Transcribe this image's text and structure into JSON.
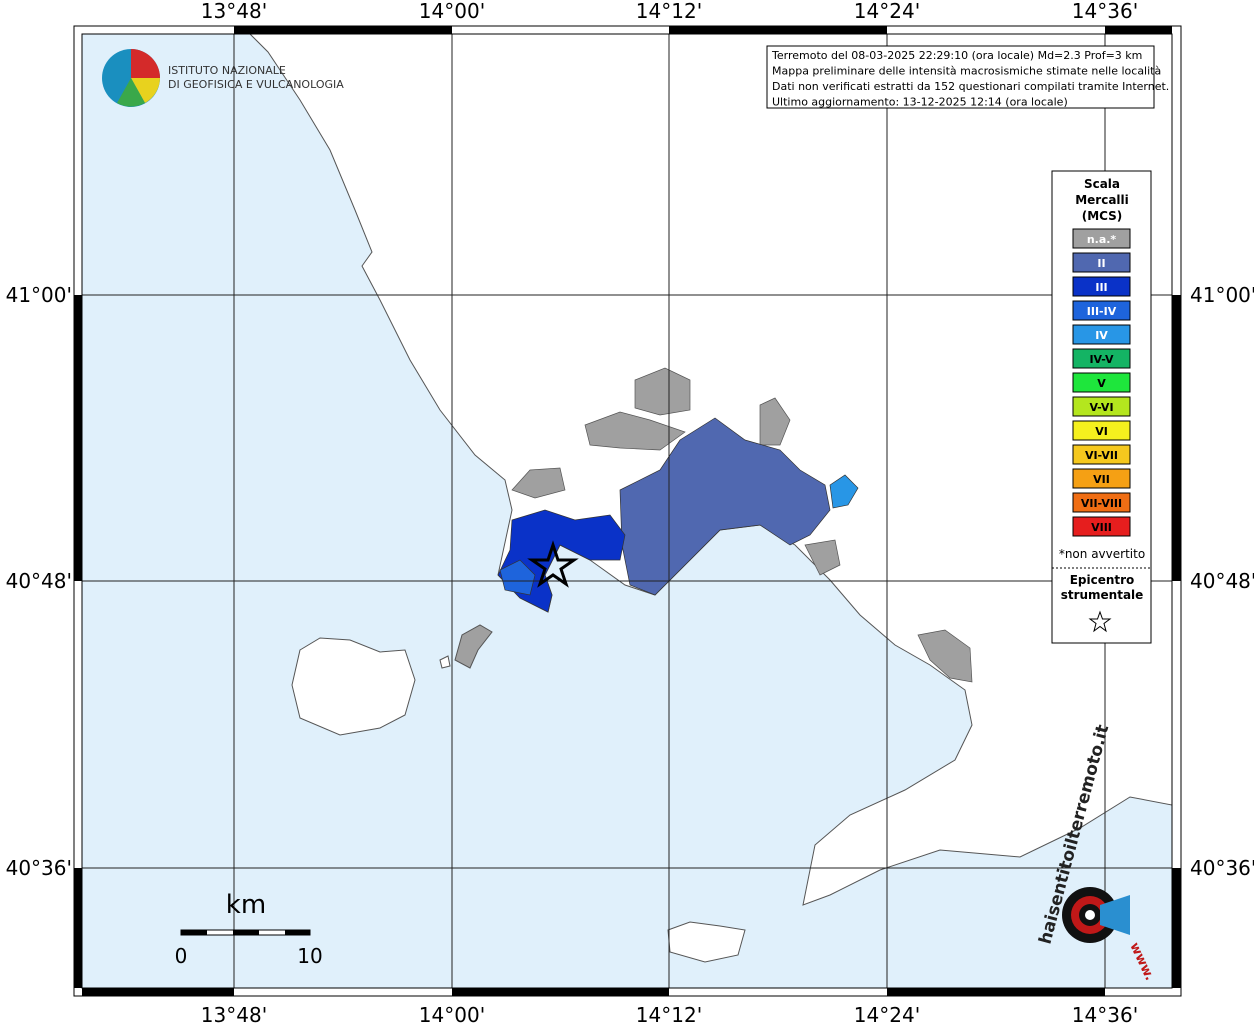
{
  "map": {
    "lon_labels": [
      "13°48'",
      "14°00'",
      "14°12'",
      "14°24'",
      "14°36'"
    ],
    "lat_labels": [
      "41°00'",
      "40°48'",
      "40°36'"
    ],
    "logo": {
      "line1": "ISTITUTO NAZIONALE",
      "line2": "DI GEOFISICA E VULCANOLOGIA"
    },
    "info": [
      "Terremoto del 08-03-2025 22:29:10 (ora locale) Md=2.3 Prof=3 km",
      "Mappa preliminare delle intensità macrosismiche stimate nelle località",
      "Dati non verificati estratti da 152 questionari compilati tramite Internet.",
      "Ultimo aggiornamento: 13-12-2025 12:14 (ora locale)"
    ],
    "legend": {
      "title": [
        "Scala",
        "Mercalli",
        "(MCS)"
      ],
      "items": [
        {
          "label": "n.a.*",
          "color": "#a0a0a0"
        },
        {
          "label": "II",
          "color": "#5068b0"
        },
        {
          "label": "III",
          "color": "#0a32c8"
        },
        {
          "label": "III-IV",
          "color": "#1e64dc"
        },
        {
          "label": "IV",
          "color": "#2896e6"
        },
        {
          "label": "IV-V",
          "color": "#14b464"
        },
        {
          "label": "V",
          "color": "#1ee63c"
        },
        {
          "label": "V-VI",
          "color": "#b4e61e"
        },
        {
          "label": "VI",
          "color": "#f5f01e"
        },
        {
          "label": "VI-VII",
          "color": "#f5c81e"
        },
        {
          "label": "VII",
          "color": "#f5a014"
        },
        {
          "label": "VII-VIII",
          "color": "#f06e14"
        },
        {
          "label": "VIII",
          "color": "#e61e1e"
        }
      ],
      "note": "*non avvertito",
      "epicenter": [
        "Epicentro",
        "strumentale"
      ]
    },
    "scale": {
      "unit": "km",
      "start": "0",
      "end": "10"
    },
    "brand": {
      "site": "haisentitoilterremoto.it",
      "prefix": "www."
    }
  }
}
